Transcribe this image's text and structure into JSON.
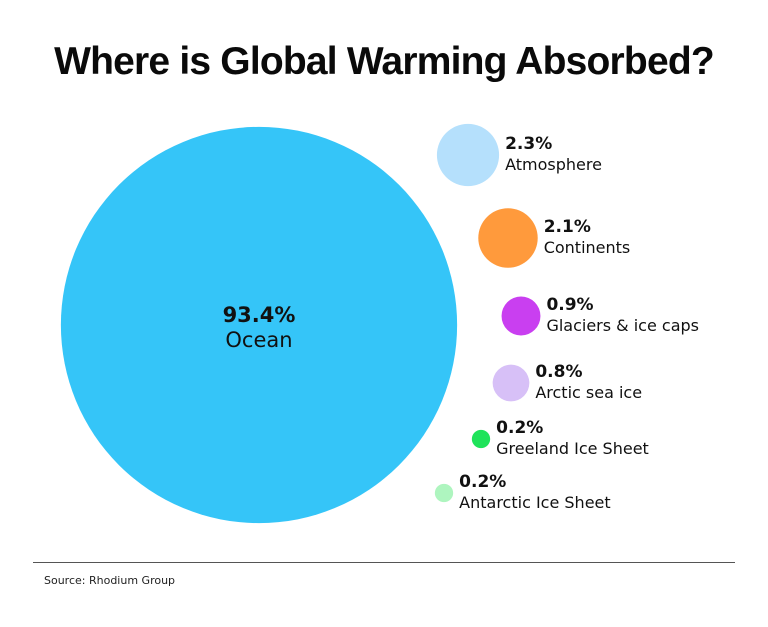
{
  "title": "Where is Global Warming Absorbed?",
  "source": "Source: Rhodium Group",
  "chart_data": {
    "type": "bubble",
    "unit": "%",
    "categories": [
      "Ocean",
      "Atmosphere",
      "Continents",
      "Glaciers & ice caps",
      "Arctic sea ice",
      "Greeland Ice Sheet",
      "Antarctic Ice Sheet"
    ],
    "values": [
      93.4,
      2.3,
      2.1,
      0.9,
      0.8,
      0.2,
      0.2
    ],
    "labels": [
      "93.4%",
      "2.3%",
      "2.1%",
      "0.9%",
      "0.8%",
      "0.2%",
      "0.2%"
    ],
    "colors": [
      "#35c5f8",
      "#b5e0fc",
      "#ff9a3c",
      "#c93ff0",
      "#d7c0f7",
      "#1fe35a",
      "#aef5bf"
    ]
  }
}
